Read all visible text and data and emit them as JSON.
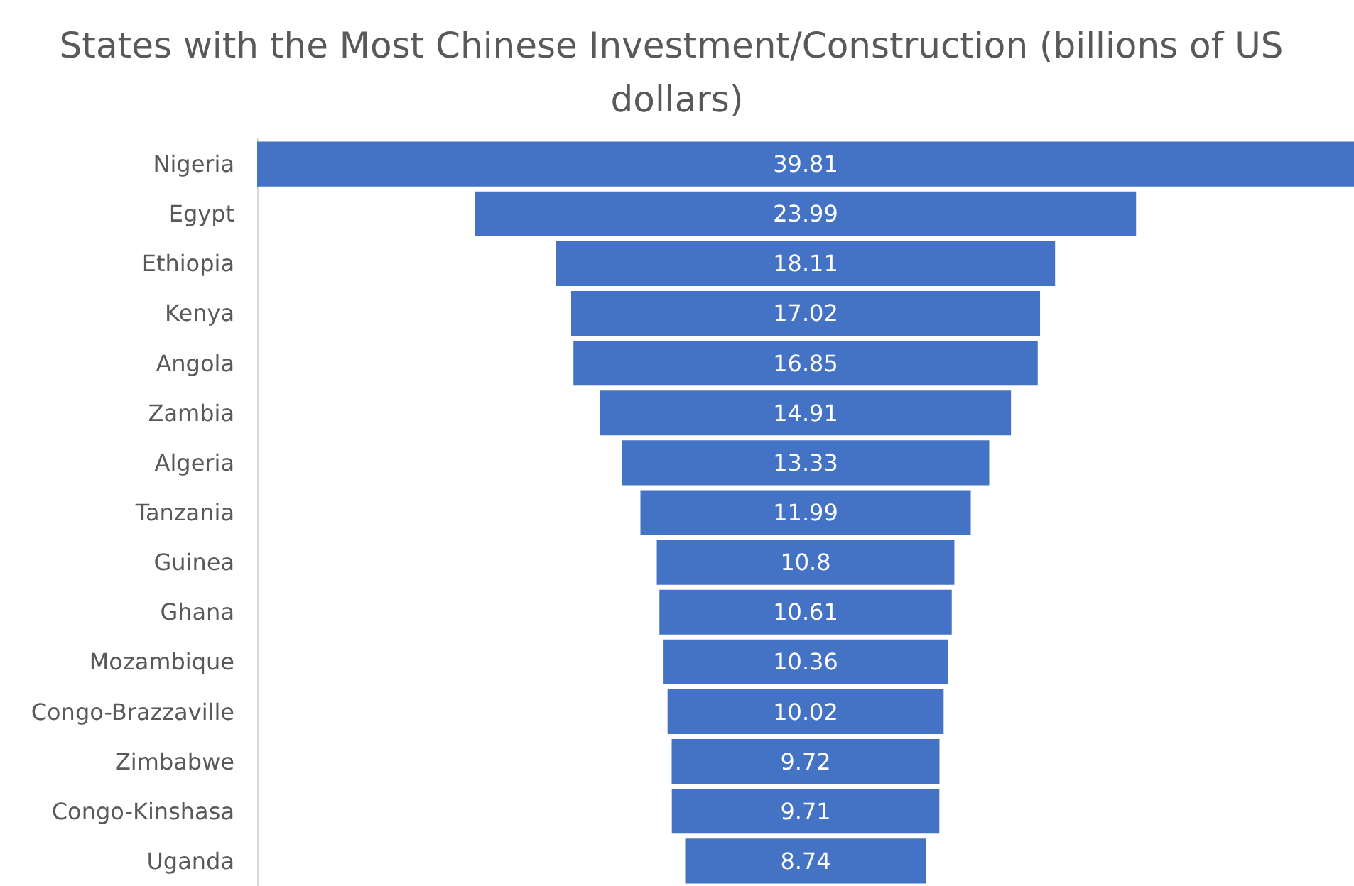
{
  "chart_data": {
    "type": "other",
    "title": "States with the Most Chinese Investment/Construction (billions of US dollars)",
    "categories": [
      "Nigeria",
      "Egypt",
      "Ethiopia",
      "Kenya",
      "Angola",
      "Zambia",
      "Algeria",
      "Tanzania",
      "Guinea",
      "Ghana",
      "Mozambique",
      "Congo-Brazzaville",
      "Zimbabwe",
      "Congo-Kinshasa",
      "Uganda"
    ],
    "values": [
      39.81,
      23.99,
      18.11,
      17.02,
      16.85,
      14.91,
      13.33,
      11.99,
      10.8,
      10.61,
      10.36,
      10.02,
      9.72,
      9.71,
      8.74
    ],
    "color": "#4472c4",
    "data_labels": true
  }
}
